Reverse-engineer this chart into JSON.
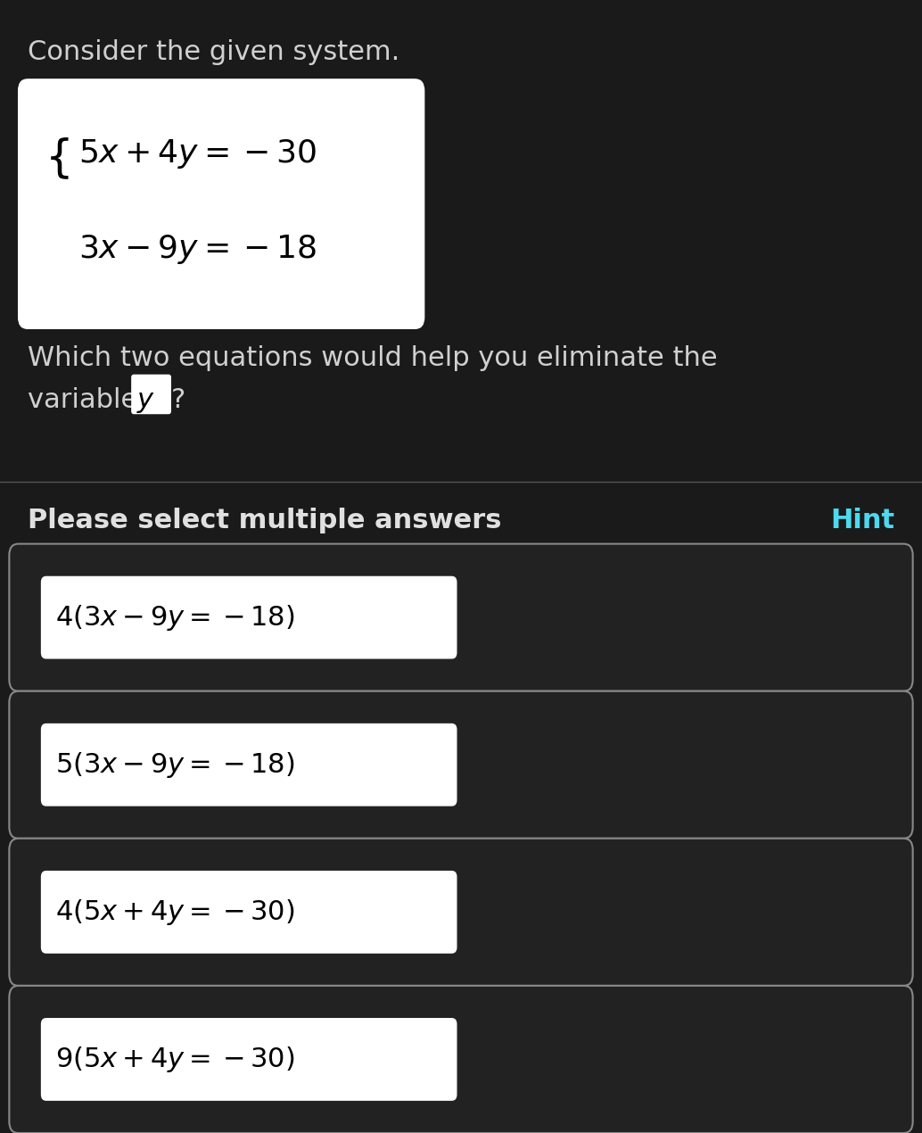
{
  "background_color": "#1a1a1a",
  "title_text": "Consider the given system.",
  "title_color": "#d0d0d0",
  "title_fontsize": 22,
  "system_box_color": "#ffffff",
  "system_eq1": "$\\{5x + 4y = -30$",
  "system_eq2": "$\\{3x - 9y = -18$",
  "system_eq1_math": "$5x + 4y = -30$",
  "system_eq2_math": "$3x - 9y = -18$",
  "question_text1": "Which two equations would help you eliminate the",
  "question_text2": "variable ",
  "question_variable": "$y$",
  "question_color": "#d0d0d0",
  "question_fontsize": 22,
  "divider_color": "#555555",
  "please_select_text": "Please select multiple answers",
  "please_select_color": "#e0e0e0",
  "please_select_fontsize": 22,
  "hint_text": "Hint",
  "hint_color": "#4dd9f0",
  "hint_fontsize": 22,
  "answer_box_bg": "#222222",
  "answer_box_border": "#888888",
  "answer_text_color": "#ffffff",
  "answer_fontsize": 22,
  "answers": [
    "4\\left(3x - 9y = -18\\right)",
    "5\\left(3x - 9y = -18\\right)",
    "4\\left(5x + 4y = -30\\right)",
    "9\\left(5x + 4y = -30\\right)"
  ],
  "answer_inner_box_color": "#ffffff",
  "answer_inner_box_bg": "#ffffff"
}
